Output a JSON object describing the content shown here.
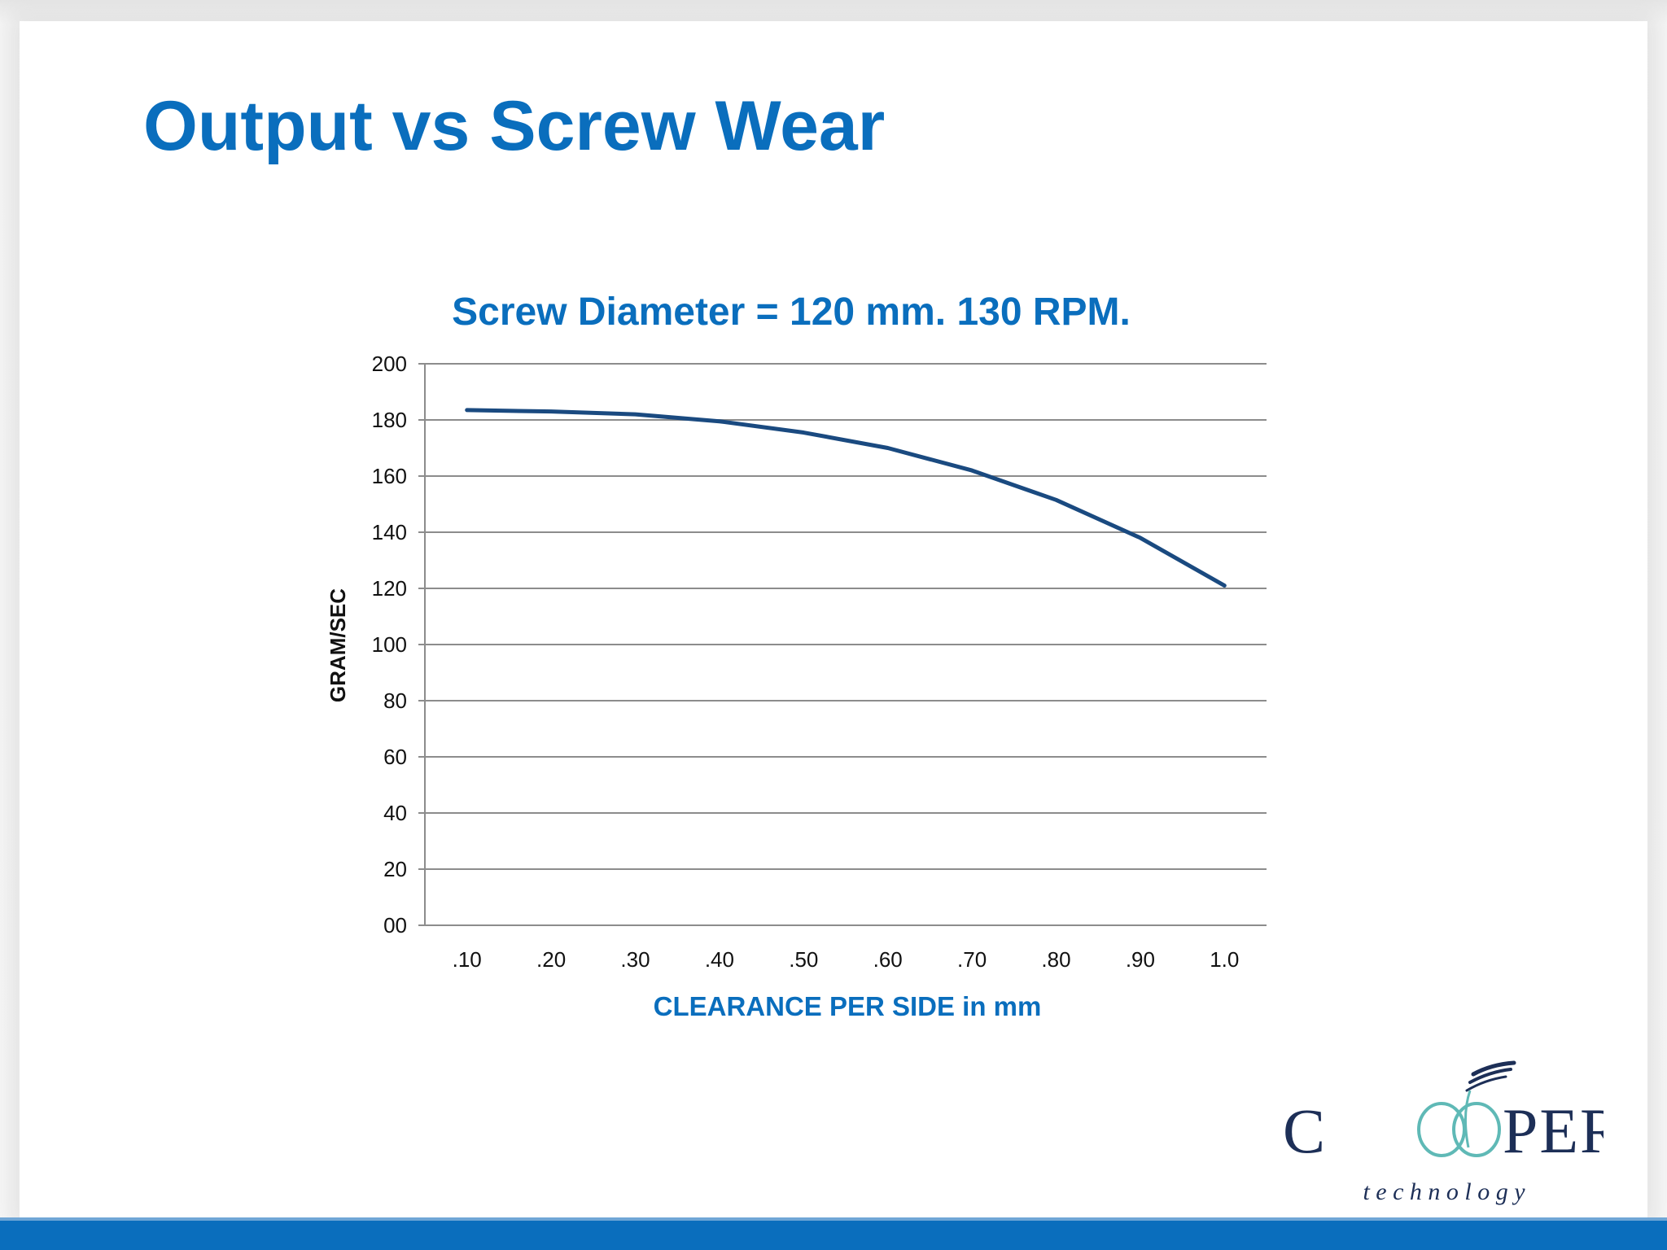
{
  "slide": {
    "title": "Output vs Screw Wear"
  },
  "logo": {
    "main": "COOPER",
    "sub": "t e c h n o l o g y"
  },
  "colors": {
    "title_blue": "#0a6ebd",
    "line_navy": "#1a4a80",
    "grid": "#8c8c8c",
    "bar_blue": "#0a6ebd",
    "logo_navy": "#1d2f57",
    "logo_teal": "#5fb9b6"
  },
  "chart_data": {
    "type": "line",
    "title": "Screw Diameter = 120 mm.  130 RPM.",
    "xlabel": "CLEARANCE PER SIDE in mm",
    "ylabel": "GRAM/SEC",
    "categories": [
      ".10",
      ".20",
      ".30",
      ".40",
      ".50",
      ".60",
      ".70",
      ".80",
      ".90",
      "1.0"
    ],
    "ylim": [
      0,
      200
    ],
    "yticks": [
      "00",
      "20",
      "40",
      "60",
      "80",
      "100",
      "120",
      "140",
      "160",
      "180",
      "200"
    ],
    "grid": true,
    "legend": "none",
    "series": [
      {
        "values": [
          183.5,
          183,
          182,
          179.5,
          175.5,
          170,
          162,
          151.5,
          138,
          121
        ]
      }
    ]
  }
}
